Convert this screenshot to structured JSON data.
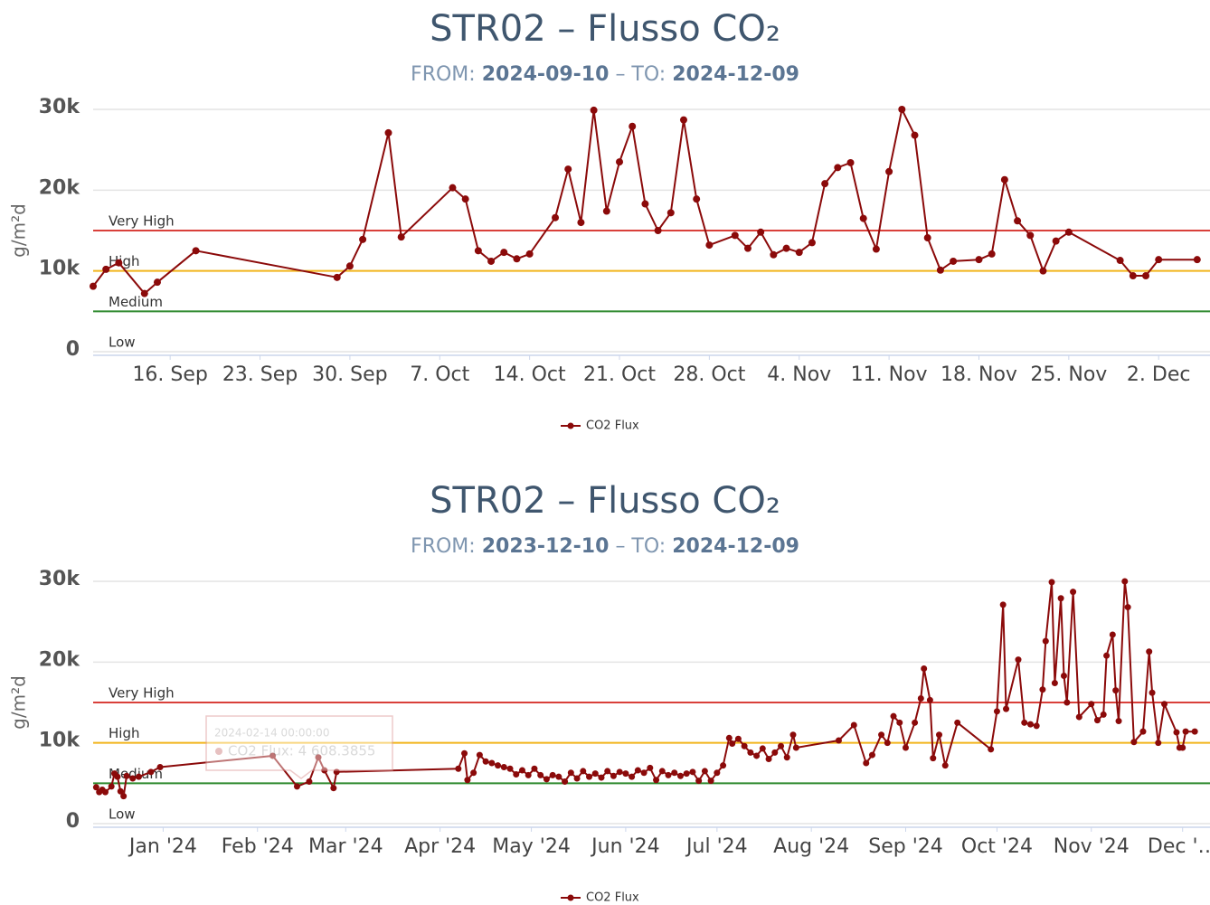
{
  "chart_data": [
    {
      "type": "line",
      "title": "STR02 – Flusso CO₂",
      "subtitle": {
        "from_label": "FROM:",
        "from": "2024-09-10",
        "to_label": "– TO:",
        "to": "2024-12-09"
      },
      "y_label": "g/m²d",
      "xlim": [
        "2024-09-10",
        "2024-12-06"
      ],
      "xticks": [
        {
          "value": "2024-09-16",
          "label": "16. Sep"
        },
        {
          "value": "2024-09-23",
          "label": "23. Sep"
        },
        {
          "value": "2024-09-30",
          "label": "30. Sep"
        },
        {
          "value": "2024-10-07",
          "label": "7. Oct"
        },
        {
          "value": "2024-10-14",
          "label": "14. Oct"
        },
        {
          "value": "2024-10-21",
          "label": "21. Oct"
        },
        {
          "value": "2024-10-28",
          "label": "28. Oct"
        },
        {
          "value": "2024-11-04",
          "label": "4. Nov"
        },
        {
          "value": "2024-11-11",
          "label": "11. Nov"
        },
        {
          "value": "2024-11-18",
          "label": "18. Nov"
        },
        {
          "value": "2024-11-25",
          "label": "25. Nov"
        },
        {
          "value": "2024-12-02",
          "label": "2. Dec"
        }
      ],
      "ylim": [
        0,
        30000
      ],
      "yticks": [
        0,
        {
          "value": 10000,
          "label": "10k"
        },
        {
          "value": 20000,
          "label": "20k"
        },
        {
          "value": 30000,
          "label": "30k"
        }
      ],
      "grid": true,
      "thresholds": [
        {
          "label": "Very High",
          "value": 15000,
          "color": "#d9403a"
        },
        {
          "label": "High",
          "value": 10000,
          "color": "#f2b51c"
        },
        {
          "label": "Medium",
          "value": 5000,
          "color": "#2f8a2f"
        },
        {
          "label": "Low",
          "value": 0
        }
      ],
      "series": [
        {
          "name": "CO2 Flux",
          "color": "#8b0a0a",
          "x": [
            "2024-09-10",
            "2024-09-11",
            "2024-09-12",
            "2024-09-14",
            "2024-09-15",
            "2024-09-18",
            "2024-09-29",
            "2024-09-30",
            "2024-10-01",
            "2024-10-03",
            "2024-10-04",
            "2024-10-08",
            "2024-10-09",
            "2024-10-10",
            "2024-10-11",
            "2024-10-12",
            "2024-10-13",
            "2024-10-14",
            "2024-10-16",
            "2024-10-17",
            "2024-10-18",
            "2024-10-19",
            "2024-10-20",
            "2024-10-21",
            "2024-10-22",
            "2024-10-23",
            "2024-10-24",
            "2024-10-25",
            "2024-10-26",
            "2024-10-27",
            "2024-10-28",
            "2024-10-30",
            "2024-10-31",
            "2024-11-01",
            "2024-11-02",
            "2024-11-03",
            "2024-11-04",
            "2024-11-05",
            "2024-11-06",
            "2024-11-07",
            "2024-11-08",
            "2024-11-09",
            "2024-11-10",
            "2024-11-11",
            "2024-11-12",
            "2024-11-13",
            "2024-11-14",
            "2024-11-15",
            "2024-11-16",
            "2024-11-18",
            "2024-11-19",
            "2024-11-20",
            "2024-11-21",
            "2024-11-22",
            "2024-11-23",
            "2024-11-24",
            "2024-11-25",
            "2024-11-29",
            "2024-11-30",
            "2024-12-01",
            "2024-12-02",
            "2024-12-05"
          ],
          "values": [
            8100,
            10200,
            11000,
            7200,
            8600,
            12500,
            9200,
            10600,
            13900,
            27100,
            14200,
            20300,
            18900,
            12500,
            11200,
            12300,
            11500,
            12100,
            16600,
            22600,
            16000,
            29900,
            17400,
            23500,
            27900,
            18300,
            15000,
            17200,
            28700,
            18900,
            13200,
            14400,
            12800,
            14800,
            12000,
            12800,
            12300,
            13500,
            20800,
            22800,
            23400,
            16500,
            12700,
            22300,
            30000,
            26800,
            14100,
            10100,
            11200,
            11400,
            12100,
            21300,
            16200,
            14400,
            10000,
            13700,
            14800,
            11300,
            9400,
            9400,
            11400,
            11400
          ]
        }
      ]
    },
    {
      "type": "line",
      "title": "STR02 – Flusso CO₂",
      "subtitle": {
        "from_label": "FROM:",
        "from": "2023-12-10",
        "to_label": "– TO:",
        "to": "2024-12-09"
      },
      "y_label": "g/m²d",
      "xlim": [
        "2023-12-09",
        "2024-12-10"
      ],
      "xticks": [
        {
          "value": "2024-01-01",
          "label": "Jan '24"
        },
        {
          "value": "2024-02-01",
          "label": "Feb '24"
        },
        {
          "value": "2024-03-01",
          "label": "Mar '24"
        },
        {
          "value": "2024-04-01",
          "label": "Apr '24"
        },
        {
          "value": "2024-05-01",
          "label": "May '24"
        },
        {
          "value": "2024-06-01",
          "label": "Jun '24"
        },
        {
          "value": "2024-07-01",
          "label": "Jul '24"
        },
        {
          "value": "2024-08-01",
          "label": "Aug '24"
        },
        {
          "value": "2024-09-01",
          "label": "Sep '24"
        },
        {
          "value": "2024-10-01",
          "label": "Oct '24"
        },
        {
          "value": "2024-11-01",
          "label": "Nov '24"
        },
        {
          "value": "2024-12-01",
          "label": "Dec '…"
        }
      ],
      "ylim": [
        0,
        30000
      ],
      "yticks": [
        0,
        {
          "value": 10000,
          "label": "10k"
        },
        {
          "value": 20000,
          "label": "20k"
        },
        {
          "value": 30000,
          "label": "30k"
        }
      ],
      "grid": true,
      "thresholds": [
        {
          "label": "Very High",
          "value": 15000,
          "color": "#d9403a"
        },
        {
          "label": "High",
          "value": 10000,
          "color": "#f2b51c"
        },
        {
          "label": "Medium",
          "value": 5000,
          "color": "#2f8a2f"
        },
        {
          "label": "Low",
          "value": 0
        }
      ],
      "tooltip": {
        "header": "2024-02-14 00:00:00",
        "text": "CO2 Flux: 4 608.3855"
      },
      "series": [
        {
          "name": "CO2 Flux",
          "color": "#8b0a0a",
          "x": [
            "2023-12-10",
            "2023-12-11",
            "2023-12-12",
            "2023-12-13",
            "2023-12-15",
            "2023-12-16",
            "2023-12-17",
            "2023-12-18",
            "2023-12-19",
            "2023-12-20",
            "2023-12-22",
            "2023-12-24",
            "2023-12-28",
            "2023-12-31",
            "2024-02-06",
            "2024-02-14",
            "2024-02-18",
            "2024-02-21",
            "2024-02-23",
            "2024-02-26",
            "2024-02-27",
            "2024-04-07",
            "2024-04-09",
            "2024-04-10",
            "2024-04-12",
            "2024-04-14",
            "2024-04-16",
            "2024-04-18",
            "2024-04-20",
            "2024-04-22",
            "2024-04-24",
            "2024-04-26",
            "2024-04-28",
            "2024-04-30",
            "2024-05-02",
            "2024-05-04",
            "2024-05-06",
            "2024-05-08",
            "2024-05-10",
            "2024-05-12",
            "2024-05-14",
            "2024-05-16",
            "2024-05-18",
            "2024-05-20",
            "2024-05-22",
            "2024-05-24",
            "2024-05-26",
            "2024-05-28",
            "2024-05-30",
            "2024-06-01",
            "2024-06-03",
            "2024-06-05",
            "2024-06-07",
            "2024-06-09",
            "2024-06-11",
            "2024-06-13",
            "2024-06-15",
            "2024-06-17",
            "2024-06-19",
            "2024-06-21",
            "2024-06-23",
            "2024-06-25",
            "2024-06-27",
            "2024-06-29",
            "2024-07-01",
            "2024-07-03",
            "2024-07-05",
            "2024-07-06",
            "2024-07-08",
            "2024-07-10",
            "2024-07-12",
            "2024-07-14",
            "2024-07-16",
            "2024-07-18",
            "2024-07-20",
            "2024-07-22",
            "2024-07-24",
            "2024-07-26",
            "2024-07-27",
            "2024-08-10",
            "2024-08-15",
            "2024-08-19",
            "2024-08-21",
            "2024-08-24",
            "2024-08-26",
            "2024-08-28",
            "2024-08-30",
            "2024-09-01",
            "2024-09-04",
            "2024-09-06",
            "2024-09-07",
            "2024-09-09",
            "2024-09-10",
            "2024-09-12",
            "2024-09-14",
            "2024-09-18",
            "2024-09-29",
            "2024-10-01",
            "2024-10-03",
            "2024-10-04",
            "2024-10-08",
            "2024-10-10",
            "2024-10-12",
            "2024-10-14",
            "2024-10-16",
            "2024-10-17",
            "2024-10-19",
            "2024-10-20",
            "2024-10-22",
            "2024-10-23",
            "2024-10-24",
            "2024-10-26",
            "2024-10-28",
            "2024-11-01",
            "2024-11-03",
            "2024-11-05",
            "2024-11-06",
            "2024-11-08",
            "2024-11-09",
            "2024-11-10",
            "2024-11-12",
            "2024-11-13",
            "2024-11-15",
            "2024-11-18",
            "2024-11-20",
            "2024-11-21",
            "2024-11-23",
            "2024-11-25",
            "2024-11-29",
            "2024-11-30",
            "2024-12-01",
            "2024-12-02",
            "2024-12-05"
          ],
          "values": [
            4500,
            3900,
            4200,
            3900,
            4600,
            6200,
            5800,
            4000,
            3400,
            5900,
            5600,
            5800,
            6400,
            7000,
            8400,
            4600,
            5200,
            8200,
            6600,
            4400,
            6400,
            6800,
            8700,
            5400,
            6300,
            8500,
            7700,
            7500,
            7200,
            7000,
            6800,
            6100,
            6600,
            6000,
            6800,
            6000,
            5500,
            6000,
            5800,
            5200,
            6300,
            5600,
            6500,
            5800,
            6200,
            5700,
            6500,
            5900,
            6400,
            6200,
            5800,
            6600,
            6300,
            6900,
            5400,
            6500,
            6000,
            6300,
            5900,
            6200,
            6400,
            5300,
            6500,
            5300,
            6300,
            7200,
            10600,
            9900,
            10500,
            9600,
            8800,
            8400,
            9300,
            8000,
            8800,
            9600,
            8200,
            11000,
            9400,
            10300,
            12200,
            7500,
            8500,
            11000,
            10000,
            13300,
            12500,
            9400,
            12500,
            15500,
            19200,
            15300,
            8100,
            11000,
            7200,
            12500,
            9200,
            13900,
            27100,
            14200,
            20300,
            12500,
            12300,
            12100,
            16600,
            22600,
            29900,
            17400,
            27900,
            18300,
            15000,
            28700,
            13200,
            14800,
            12800,
            13500,
            20800,
            23400,
            16500,
            12700,
            30000,
            26800,
            10100,
            11400,
            21300,
            16200,
            10000,
            14800,
            11300,
            9400,
            9400,
            11400,
            11400
          ]
        }
      ]
    }
  ]
}
